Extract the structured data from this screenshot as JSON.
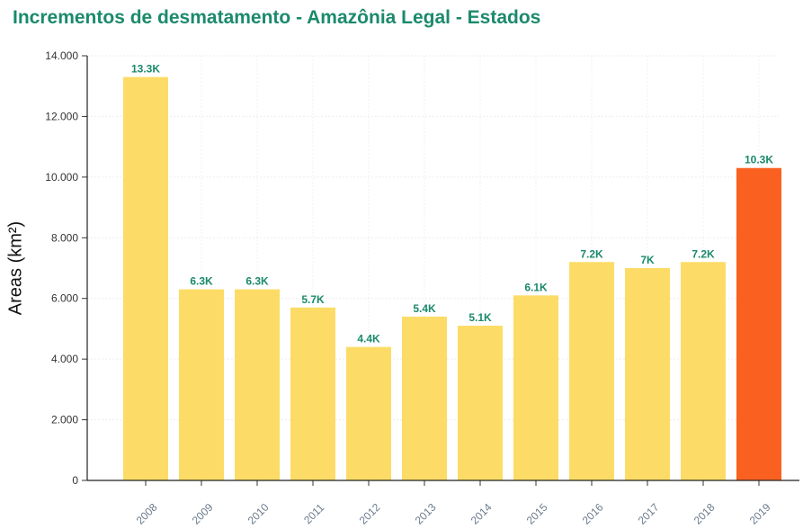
{
  "chart_data": {
    "type": "bar",
    "title": "Incrementos de desmatamento - Amazônia Legal - Estados",
    "xlabel": "",
    "ylabel": "Areas (km²)",
    "ylim": [
      0,
      14000
    ],
    "yticks": [
      0,
      2000,
      4000,
      6000,
      8000,
      10000,
      12000,
      14000
    ],
    "ytick_labels": [
      "0",
      "2.000",
      "4.000",
      "6.000",
      "8.000",
      "10.000",
      "12.000",
      "14.000"
    ],
    "categories": [
      "2008",
      "2009",
      "2010",
      "2011",
      "2012",
      "2013",
      "2014",
      "2015",
      "2016",
      "2017",
      "2018",
      "2019"
    ],
    "values": [
      13300,
      6300,
      6300,
      5700,
      4400,
      5400,
      5100,
      6100,
      7200,
      7000,
      7200,
      10300
    ],
    "data_labels": [
      "13.3K",
      "6.3K",
      "6.3K",
      "5.7K",
      "4.4K",
      "5.4K",
      "5.1K",
      "6.1K",
      "7.2K",
      "7K",
      "7.2K",
      "10.3K"
    ],
    "bar_colors": [
      "#fcdc66",
      "#fcdc66",
      "#fcdc66",
      "#fcdc66",
      "#fcdc66",
      "#fcdc66",
      "#fcdc66",
      "#fcdc66",
      "#fcdc66",
      "#fcdc66",
      "#fcdc66",
      "#fa6120"
    ],
    "grid": true
  },
  "colors": {
    "title": "#1b8a6b",
    "label": "#1b8a6b",
    "bar": "#fcdc66",
    "highlight": "#fa6120"
  }
}
